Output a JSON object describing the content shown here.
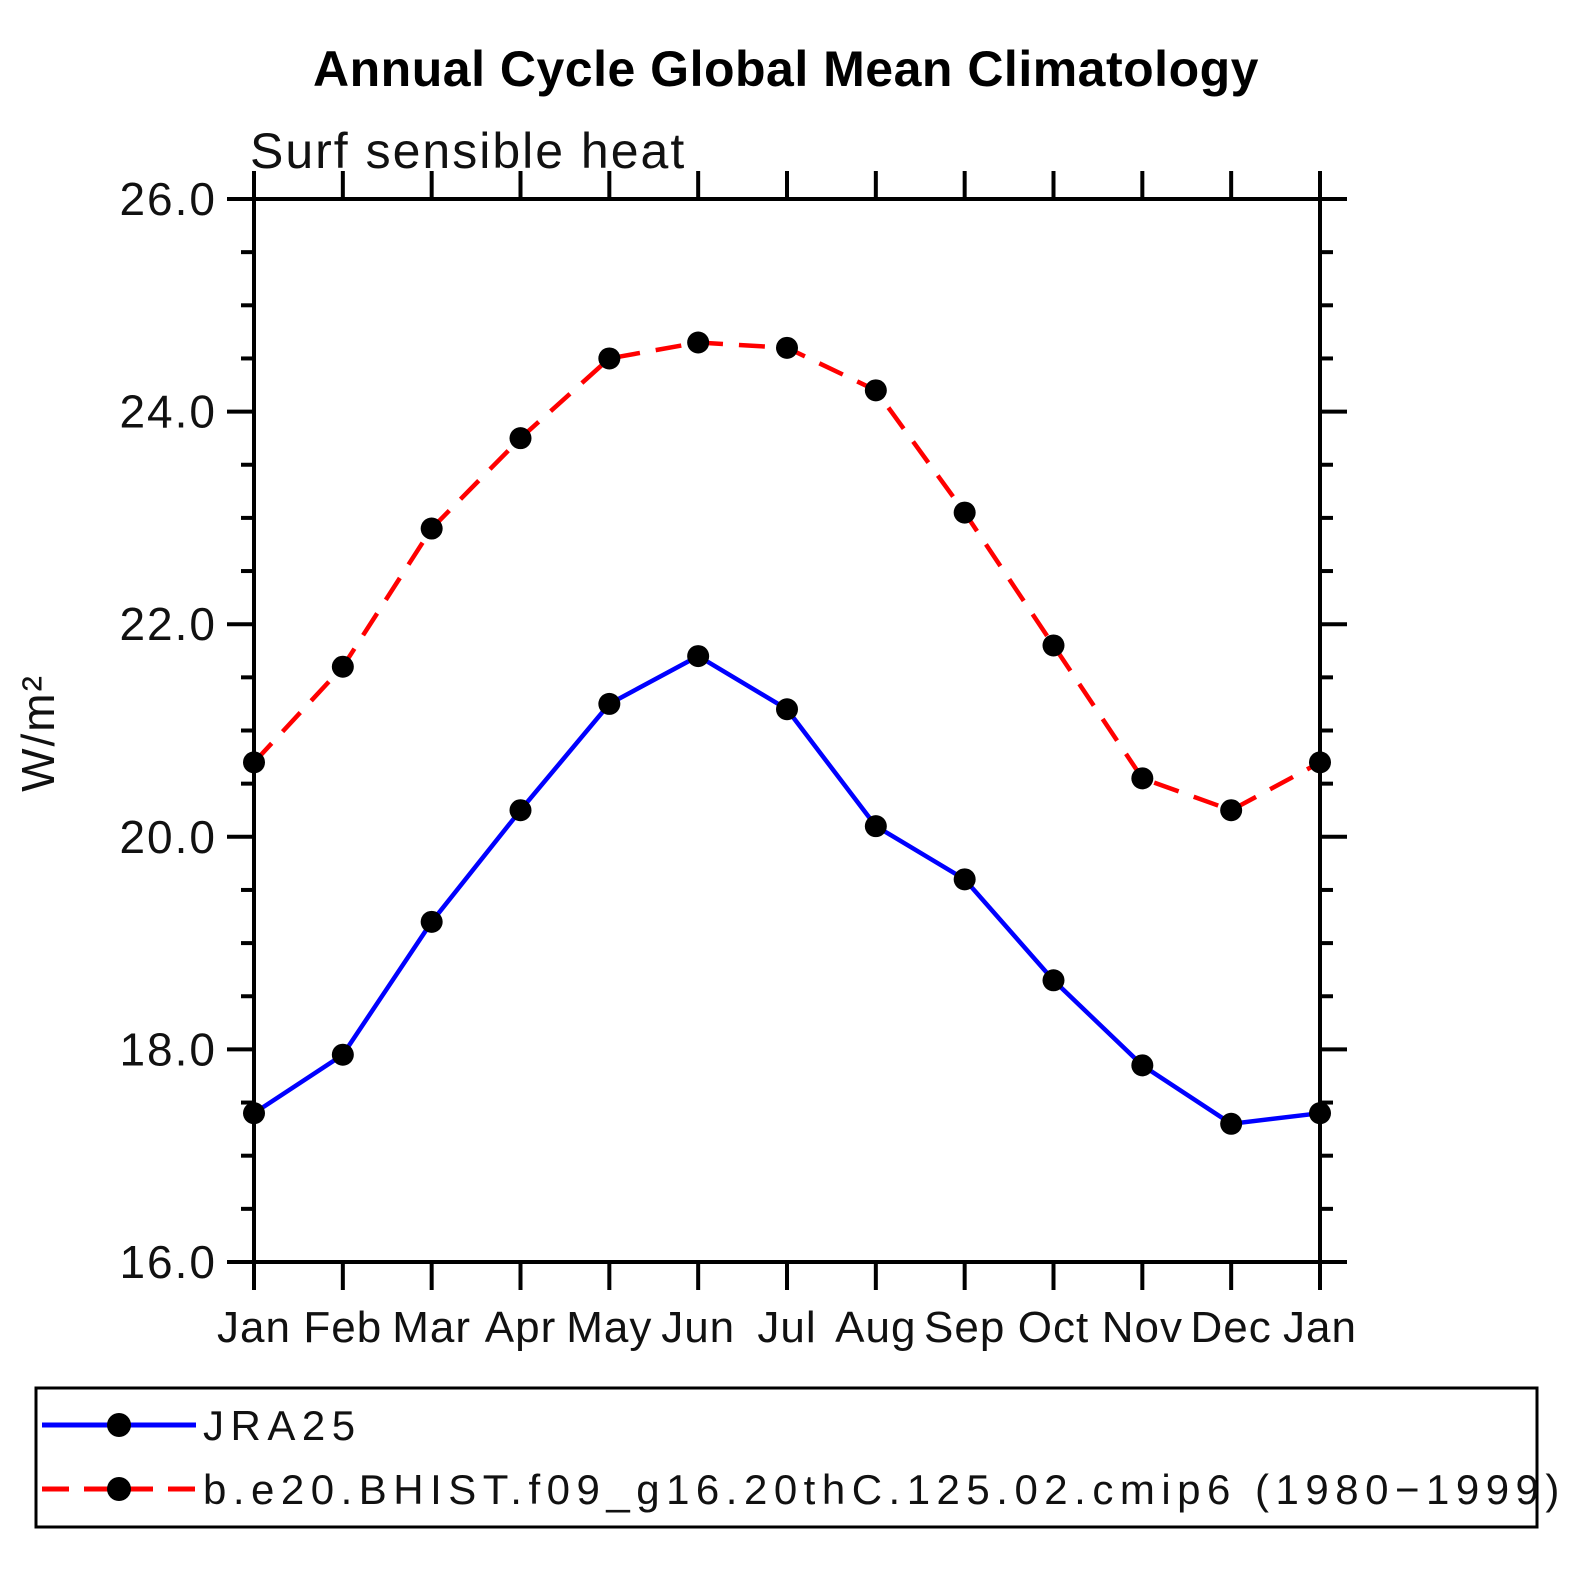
{
  "title": "Annual Cycle Global Mean Climatology",
  "subtitle": "Surf sensible heat",
  "ylabel": "W/m²",
  "legend": {
    "position": "bottom",
    "entries": [
      {
        "label": "JRA25",
        "color": "#0000ff",
        "line_style": "solid",
        "marker": "filled-circle",
        "marker_color": "#000000"
      },
      {
        "label": "b.e20.BHIST.f09_g16.20thC.125.02.cmip6 (1980−1999)",
        "color": "#ff0000",
        "line_style": "dashed",
        "marker": "filled-circle",
        "marker_color": "#000000"
      }
    ]
  },
  "chart_data": {
    "type": "line",
    "title": "Annual Cycle Global Mean Climatology",
    "subtitle": "Surf sensible heat",
    "xlabel": "",
    "ylabel": "W/m²",
    "categories": [
      "Jan",
      "Feb",
      "Mar",
      "Apr",
      "May",
      "Jun",
      "Jul",
      "Aug",
      "Sep",
      "Oct",
      "Nov",
      "Dec",
      "Jan"
    ],
    "series": [
      {
        "name": "JRA25",
        "color": "#0000ff",
        "dash": "solid",
        "values": [
          17.4,
          17.95,
          19.2,
          20.25,
          21.25,
          21.7,
          21.2,
          20.1,
          19.6,
          18.65,
          17.85,
          17.3,
          17.4
        ]
      },
      {
        "name": "b.e20.BHIST.f09_g16.20thC.125.02.cmip6 (1980−1999)",
        "color": "#ff0000",
        "dash": "dashed",
        "values": [
          20.7,
          21.6,
          22.9,
          23.75,
          24.5,
          24.65,
          24.6,
          24.2,
          23.05,
          21.8,
          20.55,
          20.25,
          20.7
        ]
      }
    ],
    "ylim": [
      16.0,
      26.0
    ],
    "ytick_major": [
      16.0,
      18.0,
      20.0,
      22.0,
      24.0,
      26.0
    ],
    "ytick_labels": [
      "16.0",
      "18.0",
      "20.0",
      "22.0",
      "24.0",
      "26.0"
    ],
    "ytick_minor_step": 0.5,
    "grid": false,
    "marker_radius_px": 11,
    "legend_position": "bottom"
  }
}
